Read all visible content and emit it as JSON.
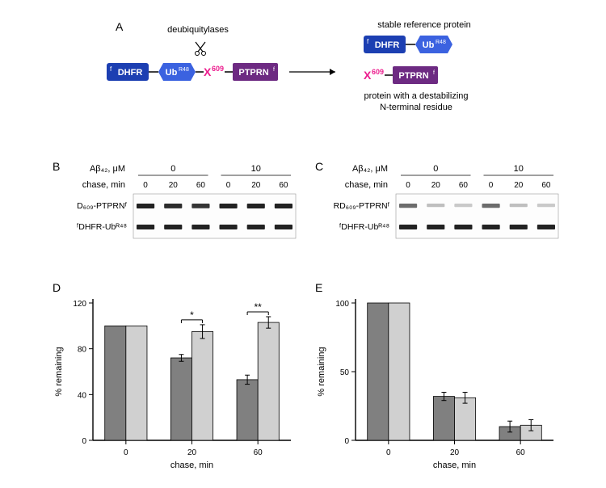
{
  "panelA": {
    "label": "A",
    "deub_label": "deubiquitylases",
    "stable_label": "stable reference protein",
    "destab_label": "protein with a destabilizing\nN-terminal residue",
    "dhfr": "DHFR",
    "dhfr_sup": "f",
    "ub": "Ub",
    "ub_sup": "R48",
    "x": "X",
    "x_sup": "609",
    "ptprn": "PTPRN",
    "ptprn_sup": "f",
    "colors": {
      "dhfr": "#1c3fb2",
      "ub": "#3b62e0",
      "x": "#ec1d8e",
      "ptprn": "#6d2a82",
      "text": "#ffffff"
    }
  },
  "panelB": {
    "label": "B",
    "ab_label": "Aβ₄₂, μM",
    "chase_label": "chase, min",
    "doses": [
      "0",
      "10"
    ],
    "times": [
      "0",
      "20",
      "60",
      "0",
      "20",
      "60"
    ],
    "row1": "D₆₀₉-PTPRNᶠ",
    "row2": "ᶠDHFR-Ubᴿ⁴⁸",
    "band_intensity_row1": [
      1.0,
      0.95,
      0.9,
      1.0,
      1.0,
      1.0
    ],
    "band_intensity_row2": [
      1.0,
      1.0,
      1.0,
      1.0,
      1.0,
      1.0
    ]
  },
  "panelC": {
    "label": "C",
    "ab_label": "Aβ₄₂, μM",
    "chase_label": "chase, min",
    "doses": [
      "0",
      "10"
    ],
    "times": [
      "0",
      "20",
      "60",
      "0",
      "20",
      "60"
    ],
    "row1": "RD₆₀₉-PTPRNᶠ",
    "row2": "ᶠDHFR-Ubᴿ⁴⁸",
    "band_intensity_row1": [
      0.6,
      0.15,
      0.1,
      0.6,
      0.15,
      0.1
    ],
    "band_intensity_row2": [
      1.0,
      1.0,
      1.0,
      1.0,
      1.0,
      1.0
    ]
  },
  "panelD": {
    "label": "D",
    "ylabel": "% remaining",
    "xlabel": "chase, min",
    "categories": [
      "0",
      "20",
      "60"
    ],
    "series": [
      {
        "values": [
          100,
          72,
          53
        ],
        "err": [
          0,
          3,
          4
        ],
        "color": "#808080"
      },
      {
        "values": [
          100,
          95,
          103
        ],
        "err": [
          0,
          6,
          5
        ],
        "color": "#d0d0d0"
      }
    ],
    "ylim": [
      0,
      120
    ],
    "ytick_step": 40,
    "sig": [
      {
        "cat": 1,
        "label": "*"
      },
      {
        "cat": 2,
        "label": "**"
      }
    ],
    "bar_width": 0.32,
    "axis_color": "#000000",
    "tick_fontsize": 10,
    "label_fontsize": 11
  },
  "panelE": {
    "label": "E",
    "ylabel": "% remaining",
    "xlabel": "chase, min",
    "categories": [
      "0",
      "20",
      "60"
    ],
    "series": [
      {
        "values": [
          100,
          32,
          10
        ],
        "err": [
          0,
          3,
          4
        ],
        "color": "#808080"
      },
      {
        "values": [
          100,
          31,
          11
        ],
        "err": [
          0,
          4,
          4
        ],
        "color": "#d0d0d0"
      }
    ],
    "ylim": [
      0,
      100
    ],
    "ytick_step": 50,
    "bar_width": 0.32,
    "axis_color": "#000000",
    "tick_fontsize": 10,
    "label_fontsize": 11
  }
}
